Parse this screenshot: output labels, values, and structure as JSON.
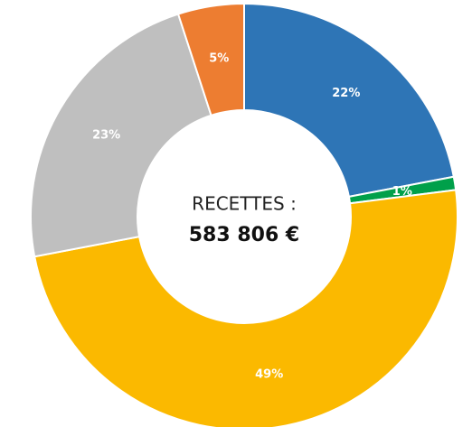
{
  "chart_data": {
    "type": "donut",
    "values": [
      22,
      1,
      49,
      23,
      5
    ],
    "value_labels": [
      "22%",
      "1%",
      "49%",
      "23%",
      "5%"
    ],
    "colors": [
      "#2e75b6",
      "#00a04a",
      "#fbb900",
      "#bfbfbf",
      "#ed7d31"
    ],
    "center_title": "RECETTES :",
    "center_value": "583 806 €"
  }
}
